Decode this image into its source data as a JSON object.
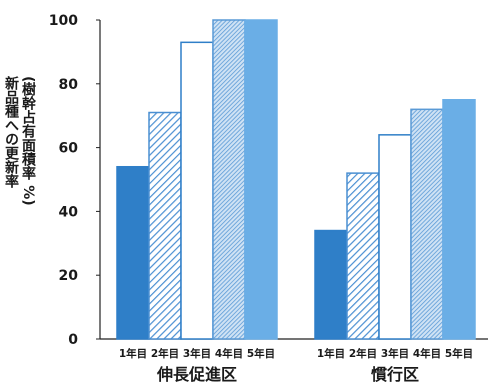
{
  "chart_data": {
    "type": "bar",
    "ylabel_lines": [
      "(樹幹占有面積率 %)",
      "新品種への更新率"
    ],
    "yticks": [
      0,
      20,
      40,
      60,
      80,
      100
    ],
    "ylim": [
      0,
      100
    ],
    "grid": false,
    "groups": [
      {
        "name": "伸長促進区",
        "categories": [
          "1年目",
          "2年目",
          "3年目",
          "4年目",
          "5年目"
        ],
        "values": [
          54,
          71,
          93,
          100,
          100
        ]
      },
      {
        "name": "慣行区",
        "categories": [
          "1年目",
          "2年目",
          "3年目",
          "4年目",
          "5年目"
        ],
        "values": [
          34,
          52,
          64,
          72,
          75
        ]
      }
    ],
    "year_styles": [
      {
        "fill": "solid",
        "color": "#2f7fc8"
      },
      {
        "fill": "diagonal-hatch",
        "color": "#4a8fd2"
      },
      {
        "fill": "white",
        "color": "#2f7fc8"
      },
      {
        "fill": "fine-hatch",
        "color": "#5a9ad6"
      },
      {
        "fill": "solid",
        "color": "#6aaee6"
      }
    ]
  }
}
